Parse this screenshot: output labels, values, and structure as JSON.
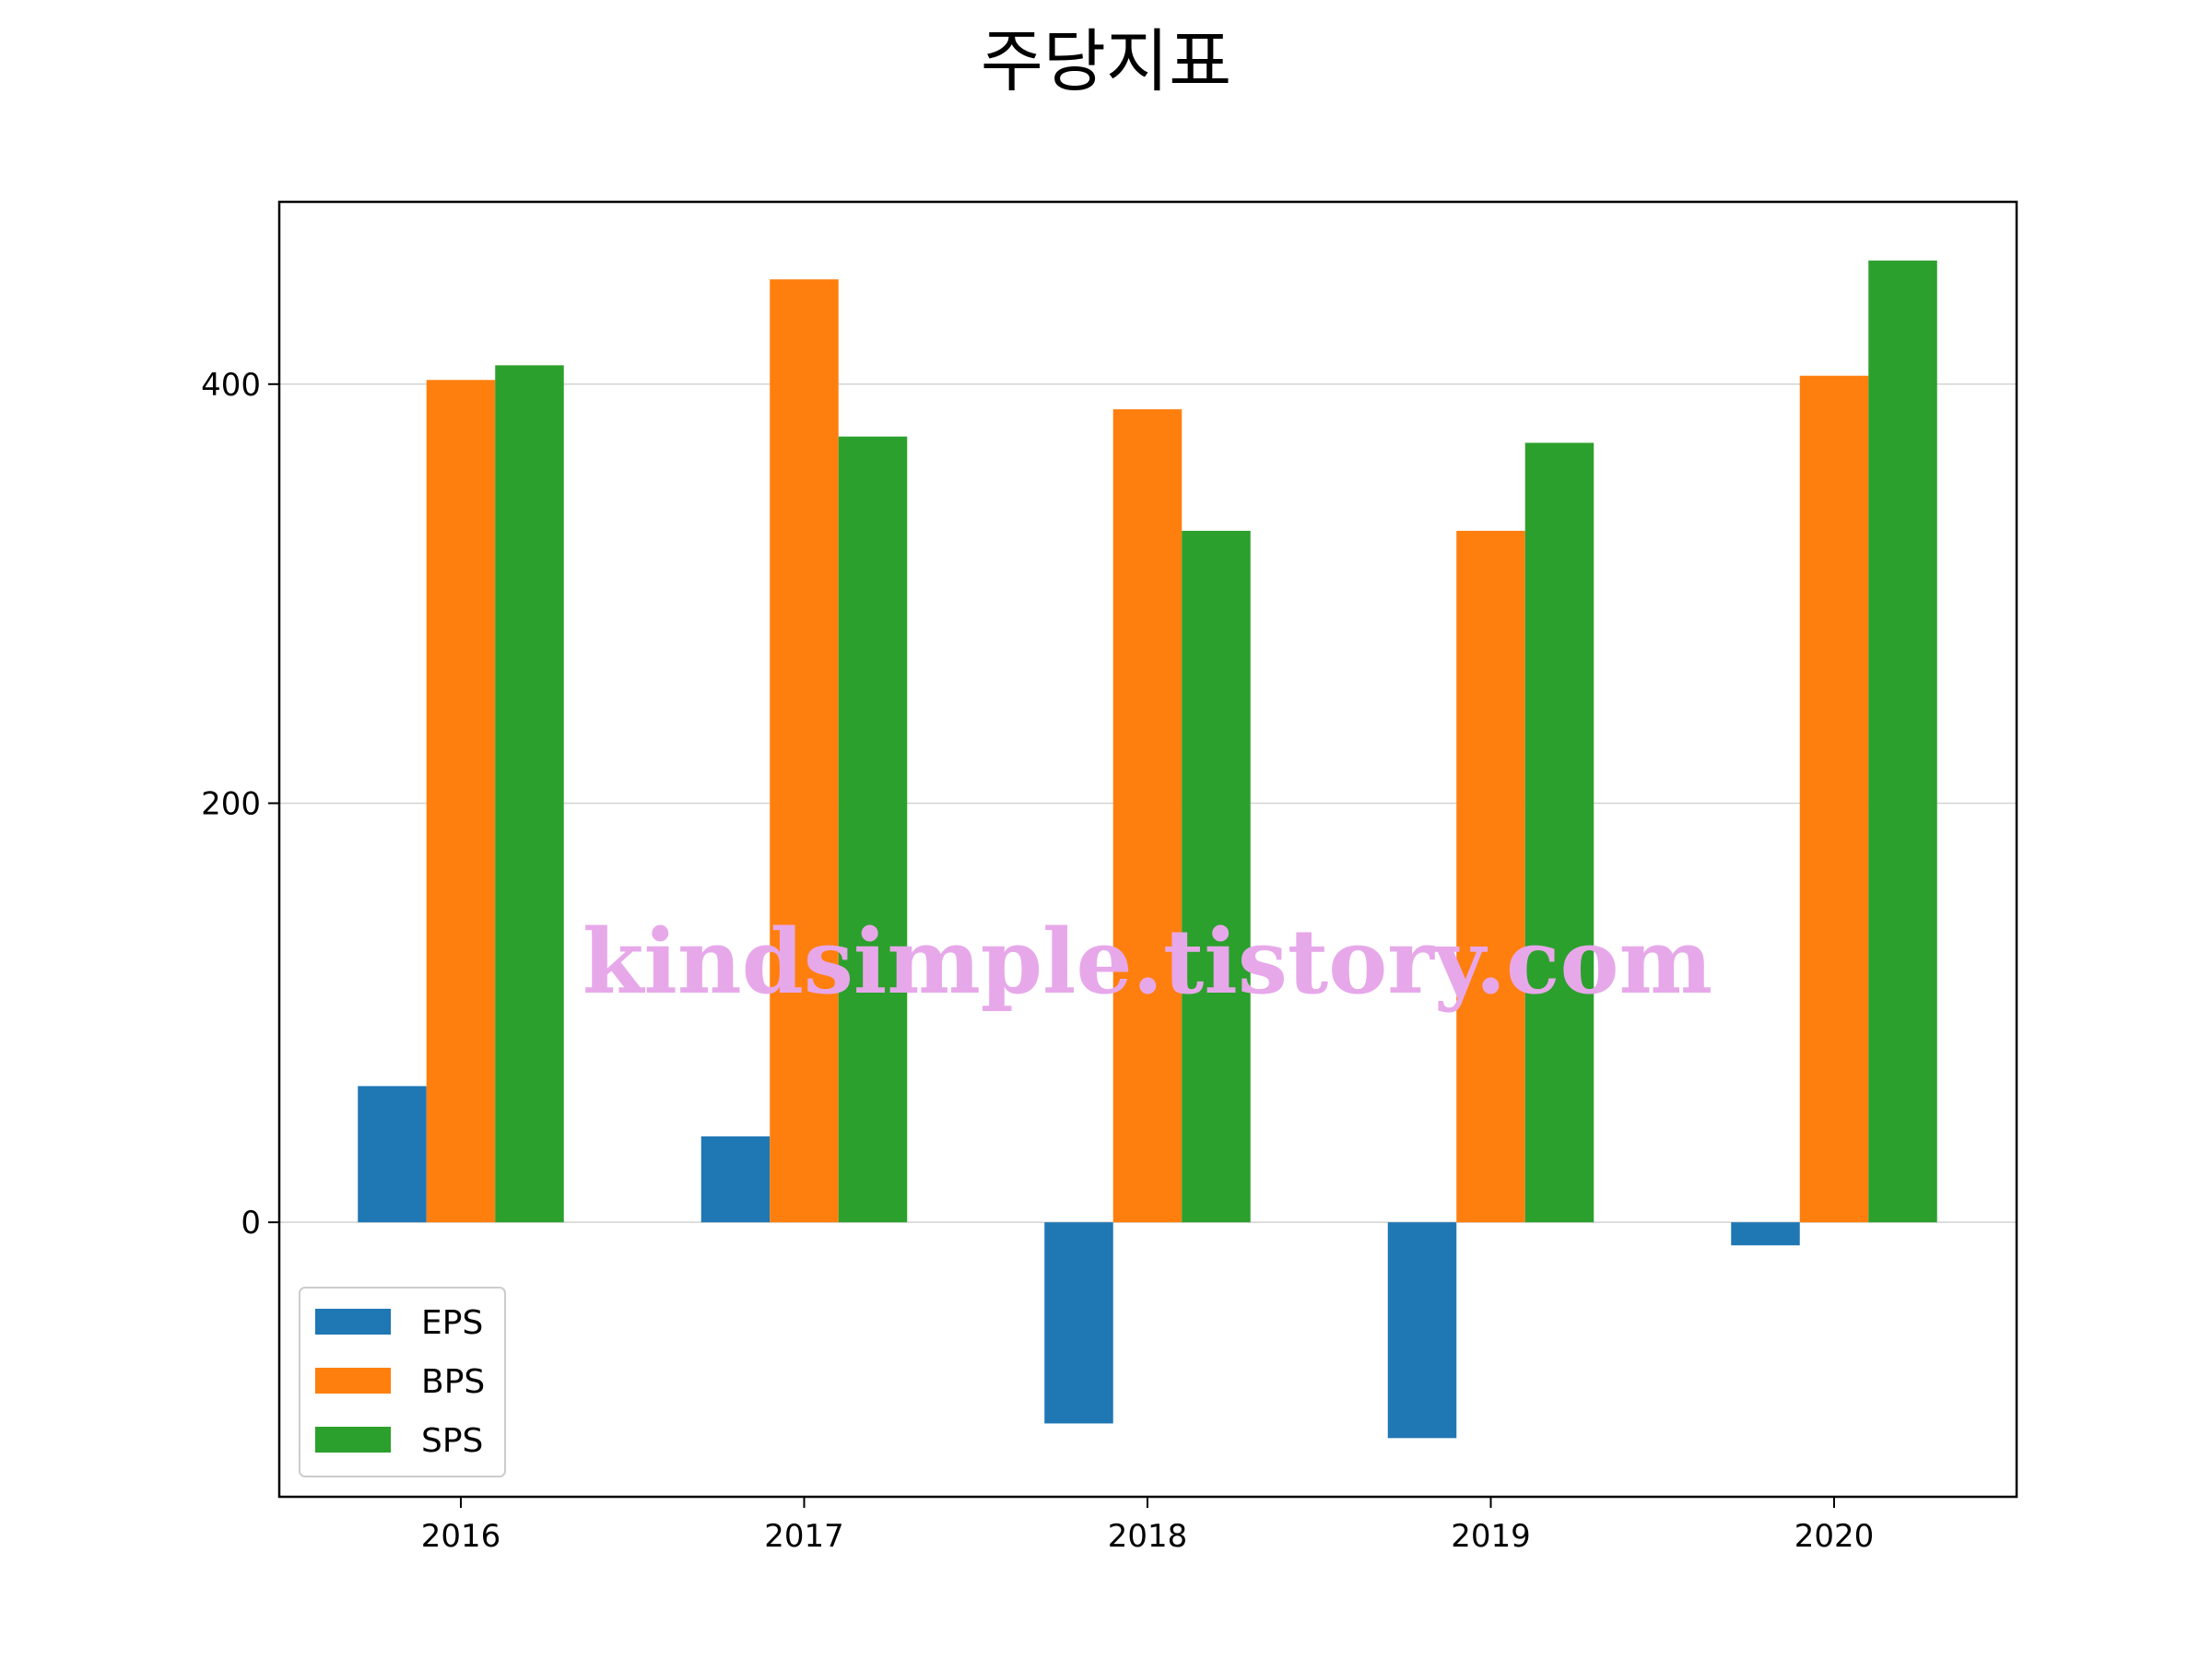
{
  "chart_data": {
    "type": "bar",
    "title": "주당지표",
    "categories": [
      "2016",
      "2017",
      "2018",
      "2019",
      "2020"
    ],
    "series": [
      {
        "name": "EPS",
        "color": "#1f77b4",
        "values": [
          65,
          41,
          -96,
          -103,
          -11
        ]
      },
      {
        "name": "BPS",
        "color": "#ff7f0e",
        "values": [
          402,
          450,
          388,
          330,
          404
        ]
      },
      {
        "name": "SPS",
        "color": "#2ca02c",
        "values": [
          409,
          375,
          330,
          372,
          459
        ]
      }
    ],
    "ylim": [
      -131,
      487
    ],
    "yticks": [
      0,
      200,
      400
    ],
    "grid": "y",
    "legend": "lower-left",
    "xlabel": "",
    "ylabel": ""
  },
  "watermark": "kindsimple.tistory.com"
}
